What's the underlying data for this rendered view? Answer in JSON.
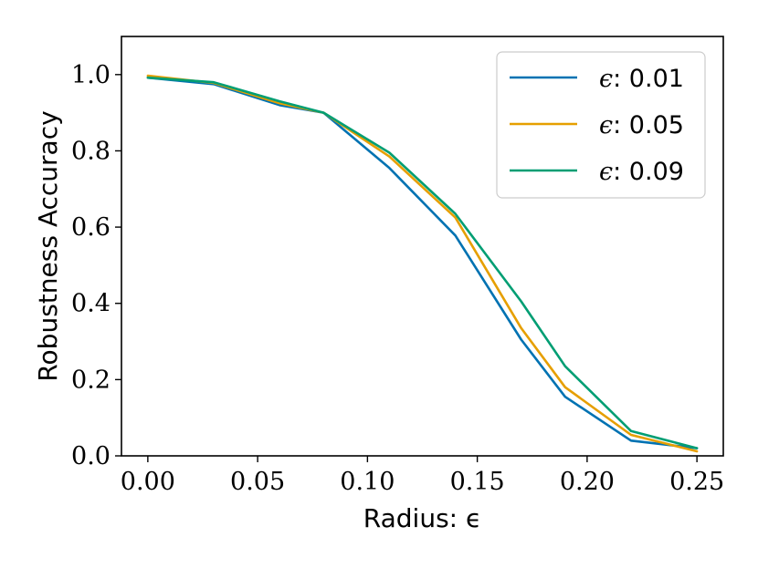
{
  "chart_data": {
    "type": "line",
    "xlabel": "Radius: ϵ",
    "ylabel": "Robustness Accuracy",
    "xlim": [
      -0.012,
      0.262
    ],
    "ylim": [
      0.0,
      1.1
    ],
    "x_ticks": [
      "0.00",
      "0.05",
      "0.10",
      "0.15",
      "0.20",
      "0.25"
    ],
    "y_ticks": [
      "0.0",
      "0.2",
      "0.4",
      "0.6",
      "0.8",
      "1.0"
    ],
    "x": [
      0.0,
      0.03,
      0.06,
      0.08,
      0.11,
      0.14,
      0.17,
      0.19,
      0.22,
      0.25
    ],
    "series": [
      {
        "name": "ϵ: 0.01",
        "color": "#0072B2",
        "values": [
          0.992,
          0.975,
          0.92,
          0.9,
          0.755,
          0.578,
          0.305,
          0.155,
          0.04,
          0.02
        ]
      },
      {
        "name": "ϵ: 0.05",
        "color": "#E69F00",
        "values": [
          0.997,
          0.978,
          0.925,
          0.9,
          0.785,
          0.625,
          0.335,
          0.18,
          0.055,
          0.012
        ]
      },
      {
        "name": "ϵ: 0.09",
        "color": "#009E73",
        "values": [
          0.992,
          0.98,
          0.93,
          0.9,
          0.795,
          0.635,
          0.405,
          0.235,
          0.065,
          0.02
        ]
      }
    ],
    "legend": {
      "position": "top-right",
      "prefix": "ϵ:",
      "values": [
        "0.01",
        "0.05",
        "0.09"
      ]
    },
    "grid": false
  }
}
